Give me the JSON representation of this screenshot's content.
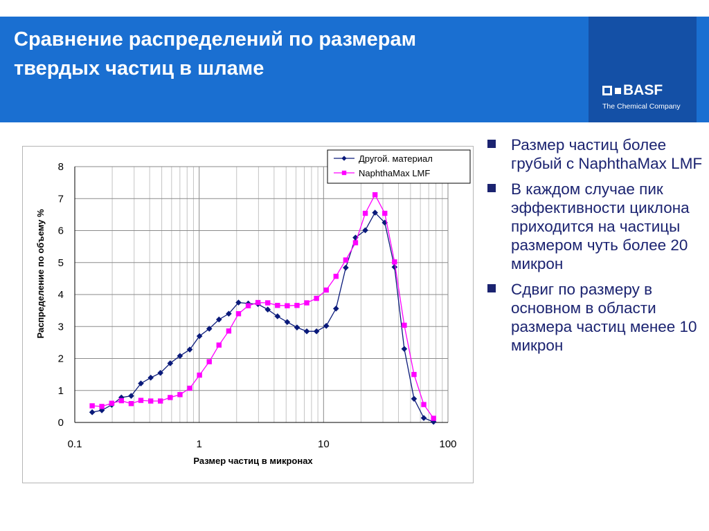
{
  "header": {
    "title_line1": "Сравнение распределений по размерам",
    "title_line2": "твердых частиц в шламе",
    "logo_text": "BASF",
    "tagline": "The Chemical Company",
    "colors": {
      "band": "#1a6fd1",
      "brand_panel": "#1450a6"
    }
  },
  "bullets": [
    "Размер частиц более грубый с NaphthaMax LMF",
    "В каждом случае пик эффективности циклона приходится на частицы размером чуть более 20 микрон",
    "Сдвиг по размеру в основном в области размера частиц менее 10 микрон"
  ],
  "chart_data": {
    "type": "line",
    "x_scale": "log",
    "xlabel": "Размер частиц в микронах",
    "ylabel": "Распределение по объему %",
    "xlim": [
      0.1,
      100
    ],
    "ylim": [
      0,
      8
    ],
    "xticks": [
      "0.1",
      "1",
      "10",
      "100"
    ],
    "yticks": [
      "0",
      "1",
      "2",
      "3",
      "4",
      "5",
      "6",
      "7",
      "8"
    ],
    "grid": true,
    "legend_position": "top-right",
    "series": [
      {
        "name": "Другой. материал",
        "color": "#0a1a7a",
        "marker": "diamond",
        "x": [
          0.138,
          0.165,
          0.198,
          0.237,
          0.284,
          0.34,
          0.408,
          0.488,
          0.585,
          0.701,
          0.84,
          1.006,
          1.205,
          1.443,
          1.729,
          2.071,
          2.48,
          2.971,
          3.559,
          4.263,
          5.106,
          6.116,
          7.326,
          8.775,
          10.51,
          12.59,
          15.08,
          18.06,
          21.64,
          25.92,
          31.05,
          37.19,
          44.54,
          53.35,
          63.9,
          76.54
        ],
        "y": [
          0.32,
          0.38,
          0.55,
          0.78,
          0.83,
          1.22,
          1.4,
          1.55,
          1.85,
          2.08,
          2.28,
          2.7,
          2.93,
          3.22,
          3.4,
          3.75,
          3.72,
          3.7,
          3.53,
          3.32,
          3.14,
          2.97,
          2.85,
          2.85,
          3.02,
          3.56,
          4.84,
          5.78,
          6.01,
          6.56,
          6.25,
          4.86,
          2.3,
          0.74,
          0.14,
          0.02
        ]
      },
      {
        "name": "NaphthaMax LMF",
        "color": "#ff00ff",
        "marker": "square",
        "x": [
          0.138,
          0.165,
          0.198,
          0.237,
          0.284,
          0.34,
          0.408,
          0.488,
          0.585,
          0.701,
          0.84,
          1.006,
          1.205,
          1.443,
          1.729,
          2.071,
          2.48,
          2.971,
          3.559,
          4.263,
          5.106,
          6.116,
          7.326,
          8.775,
          10.51,
          12.59,
          15.08,
          18.06,
          21.64,
          25.92,
          31.05,
          37.19,
          44.54,
          53.35,
          63.9,
          76.54
        ],
        "y": [
          0.52,
          0.5,
          0.6,
          0.68,
          0.59,
          0.69,
          0.67,
          0.67,
          0.78,
          0.87,
          1.07,
          1.48,
          1.9,
          2.42,
          2.86,
          3.4,
          3.65,
          3.75,
          3.74,
          3.66,
          3.65,
          3.66,
          3.74,
          3.88,
          4.14,
          4.57,
          5.08,
          5.62,
          6.54,
          7.12,
          6.54,
          5.02,
          3.04,
          1.5,
          0.56,
          0.13
        ]
      }
    ]
  }
}
